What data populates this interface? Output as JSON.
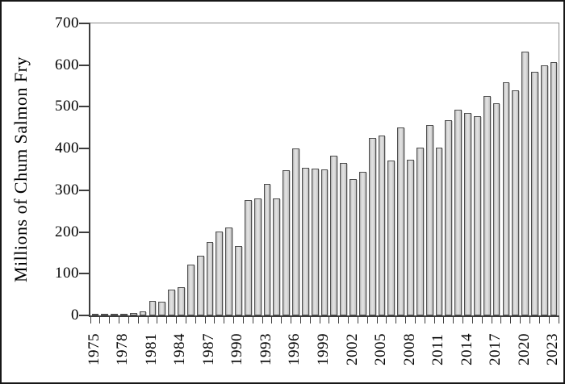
{
  "chart_data": {
    "type": "bar",
    "title": "",
    "xlabel": "",
    "ylabel": "Millions of Chum Salmon Fry",
    "ylim": [
      0,
      700
    ],
    "y_tick_interval": 100,
    "y_tick_labels": [
      "0",
      "100",
      "200",
      "300",
      "400",
      "500",
      "600",
      "700"
    ],
    "x_label_step": 3,
    "x_tick_labels": [
      "1975",
      "1978",
      "1981",
      "1984",
      "1987",
      "1990",
      "1993",
      "1996",
      "1999",
      "2002",
      "2005",
      "2008",
      "2011",
      "2014",
      "2017",
      "2020",
      "2023"
    ],
    "grid": "off",
    "legend": "none",
    "categories": [
      1975,
      1976,
      1977,
      1978,
      1979,
      1980,
      1981,
      1982,
      1983,
      1984,
      1985,
      1986,
      1987,
      1988,
      1989,
      1990,
      1991,
      1992,
      1993,
      1994,
      1995,
      1996,
      1997,
      1998,
      1999,
      2000,
      2001,
      2002,
      2003,
      2004,
      2005,
      2006,
      2007,
      2008,
      2009,
      2010,
      2011,
      2012,
      2013,
      2014,
      2015,
      2016,
      2017,
      2018,
      2019,
      2020,
      2021,
      2022,
      2023
    ],
    "values": [
      2,
      3,
      3,
      4,
      6,
      10,
      35,
      33,
      61,
      68,
      122,
      144,
      176,
      201,
      211,
      167,
      276,
      280,
      315,
      281,
      349,
      400,
      354,
      352,
      350,
      383,
      366,
      327,
      344,
      425,
      432,
      372,
      451,
      374,
      402,
      457,
      402,
      468,
      493,
      486,
      477,
      526,
      508,
      558,
      539,
      632,
      584,
      599,
      608
    ],
    "style": {
      "bar_fill": "#d6d6d6",
      "bar_border": "#4e4e4e",
      "axis_color": "#3d3d3d",
      "plot_border_color": "#8a8a8a",
      "background": "#ffffff",
      "frame_border": "#171717"
    }
  }
}
